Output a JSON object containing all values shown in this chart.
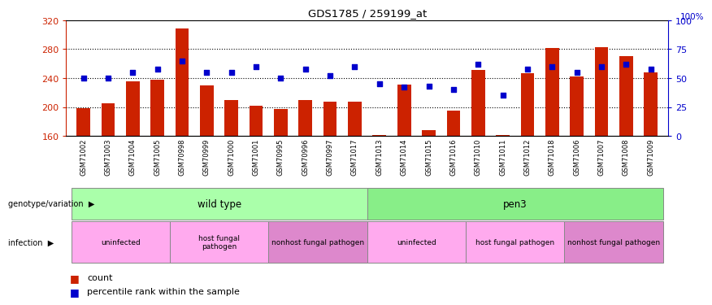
{
  "title": "GDS1785 / 259199_at",
  "samples": [
    "GSM71002",
    "GSM71003",
    "GSM71004",
    "GSM71005",
    "GSM70998",
    "GSM70999",
    "GSM71000",
    "GSM71001",
    "GSM70995",
    "GSM70996",
    "GSM70997",
    "GSM71017",
    "GSM71013",
    "GSM71014",
    "GSM71015",
    "GSM71016",
    "GSM71010",
    "GSM71011",
    "GSM71012",
    "GSM71018",
    "GSM71006",
    "GSM71007",
    "GSM71008",
    "GSM71009"
  ],
  "counts": [
    198,
    205,
    236,
    238,
    308,
    230,
    210,
    202,
    197,
    210,
    207,
    207,
    161,
    231,
    168,
    195,
    251,
    161,
    247,
    282,
    242,
    283,
    270,
    248
  ],
  "percentiles": [
    50,
    50,
    55,
    58,
    65,
    55,
    55,
    60,
    50,
    58,
    52,
    60,
    45,
    42,
    43,
    40,
    62,
    35,
    58,
    60,
    55,
    60,
    62,
    58
  ],
  "ylim_left": [
    160,
    320
  ],
  "ylim_right": [
    0,
    100
  ],
  "yticks_left": [
    160,
    200,
    240,
    280,
    320
  ],
  "yticks_right": [
    0,
    25,
    50,
    75,
    100
  ],
  "bar_color": "#cc2200",
  "dot_color": "#0000cc",
  "genotype_groups": [
    {
      "label": "wild type",
      "start": 0,
      "end": 11,
      "color": "#aaffaa"
    },
    {
      "label": "pen3",
      "start": 12,
      "end": 23,
      "color": "#88ee88"
    }
  ],
  "infection_groups": [
    {
      "label": "uninfected",
      "start": 0,
      "end": 3,
      "color": "#ffaaee"
    },
    {
      "label": "host fungal\npathogen",
      "start": 4,
      "end": 7,
      "color": "#ffaaee"
    },
    {
      "label": "nonhost fungal pathogen",
      "start": 8,
      "end": 11,
      "color": "#dd88cc"
    },
    {
      "label": "uninfected",
      "start": 12,
      "end": 15,
      "color": "#ffaaee"
    },
    {
      "label": "host fungal pathogen",
      "start": 16,
      "end": 19,
      "color": "#ffaaee"
    },
    {
      "label": "nonhost fungal pathogen",
      "start": 20,
      "end": 23,
      "color": "#dd88cc"
    }
  ],
  "left_axis_color": "#cc2200",
  "right_axis_color": "#0000cc",
  "right_axis_label": "100%"
}
